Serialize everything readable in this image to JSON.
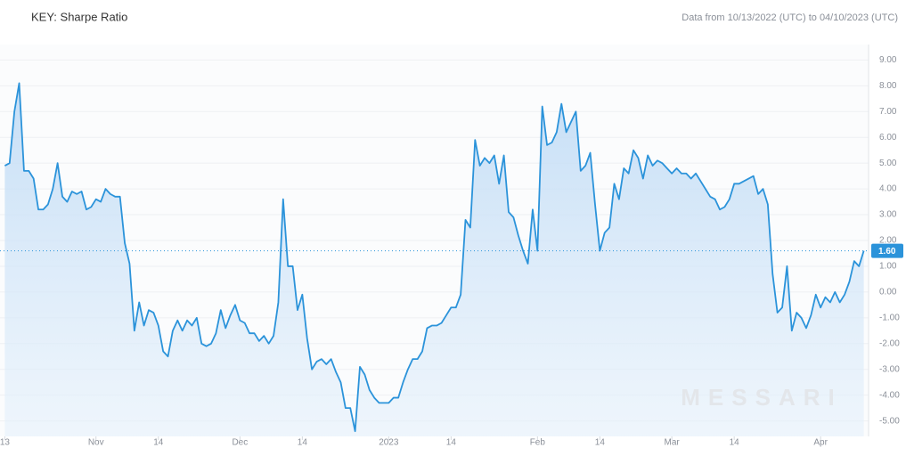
{
  "chart_data": {
    "type": "area",
    "title": "KEY: Sharpe Ratio",
    "subtitle": "Data from 10/13/2022 (UTC) to 04/10/2023 (UTC)",
    "watermark": "MESSARI",
    "color": "#2b93da",
    "fill": "#cfe4f8",
    "grid": true,
    "xlim": [
      "2022-10-12",
      "2023-04-11"
    ],
    "ylim": [
      -5.6,
      9.6
    ],
    "xticks": [
      {
        "value": "2022-10-13",
        "label": "13"
      },
      {
        "value": "2022-11-01",
        "label": "Nov"
      },
      {
        "value": "2022-11-14",
        "label": "14"
      },
      {
        "value": "2022-12-01",
        "label": "Dec"
      },
      {
        "value": "2022-12-14",
        "label": "14"
      },
      {
        "value": "2023-01-01",
        "label": "2023"
      },
      {
        "value": "2023-01-14",
        "label": "14"
      },
      {
        "value": "2023-02-01",
        "label": "Feb"
      },
      {
        "value": "2023-02-14",
        "label": "14"
      },
      {
        "value": "2023-03-01",
        "label": "Mar"
      },
      {
        "value": "2023-03-14",
        "label": "14"
      },
      {
        "value": "2023-04-01",
        "label": "Apr"
      }
    ],
    "yticks": [
      {
        "value": 9,
        "label": "9.00"
      },
      {
        "value": 8,
        "label": "8.00"
      },
      {
        "value": 7,
        "label": "7.00"
      },
      {
        "value": 6,
        "label": "6.00"
      },
      {
        "value": 5,
        "label": "5.00"
      },
      {
        "value": 4,
        "label": "4.00"
      },
      {
        "value": 3,
        "label": "3.00"
      },
      {
        "value": 2,
        "label": "2.00"
      },
      {
        "value": 1,
        "label": "1.00"
      },
      {
        "value": 0,
        "label": "0.00"
      },
      {
        "value": -1,
        "label": "-1.00"
      },
      {
        "value": -2,
        "label": "-2.00"
      },
      {
        "value": -3,
        "label": "-3.00"
      },
      {
        "value": -4,
        "label": "-4.00"
      },
      {
        "value": -5,
        "label": "-5.00"
      }
    ],
    "current": {
      "value": 1.6,
      "label": "1.60"
    },
    "x": [
      "2022-10-13",
      "2022-10-14",
      "2022-10-15",
      "2022-10-16",
      "2022-10-17",
      "2022-10-18",
      "2022-10-19",
      "2022-10-20",
      "2022-10-21",
      "2022-10-22",
      "2022-10-23",
      "2022-10-24",
      "2022-10-25",
      "2022-10-26",
      "2022-10-27",
      "2022-10-28",
      "2022-10-29",
      "2022-10-30",
      "2022-10-31",
      "2022-11-01",
      "2022-11-02",
      "2022-11-03",
      "2022-11-04",
      "2022-11-05",
      "2022-11-06",
      "2022-11-07",
      "2022-11-08",
      "2022-11-09",
      "2022-11-10",
      "2022-11-11",
      "2022-11-12",
      "2022-11-13",
      "2022-11-14",
      "2022-11-15",
      "2022-11-16",
      "2022-11-17",
      "2022-11-18",
      "2022-11-19",
      "2022-11-20",
      "2022-11-21",
      "2022-11-22",
      "2022-11-23",
      "2022-11-24",
      "2022-11-25",
      "2022-11-26",
      "2022-11-27",
      "2022-11-28",
      "2022-11-29",
      "2022-11-30",
      "2022-12-01",
      "2022-12-02",
      "2022-12-03",
      "2022-12-04",
      "2022-12-05",
      "2022-12-06",
      "2022-12-07",
      "2022-12-08",
      "2022-12-09",
      "2022-12-10",
      "2022-12-11",
      "2022-12-12",
      "2022-12-13",
      "2022-12-14",
      "2022-12-15",
      "2022-12-16",
      "2022-12-17",
      "2022-12-18",
      "2022-12-19",
      "2022-12-20",
      "2022-12-21",
      "2022-12-22",
      "2022-12-23",
      "2022-12-24",
      "2022-12-25",
      "2022-12-26",
      "2022-12-27",
      "2022-12-28",
      "2022-12-29",
      "2022-12-30",
      "2022-12-31",
      "2023-01-01",
      "2023-01-02",
      "2023-01-03",
      "2023-01-04",
      "2023-01-05",
      "2023-01-06",
      "2023-01-07",
      "2023-01-08",
      "2023-01-09",
      "2023-01-10",
      "2023-01-11",
      "2023-01-12",
      "2023-01-13",
      "2023-01-14",
      "2023-01-15",
      "2023-01-16",
      "2023-01-17",
      "2023-01-18",
      "2023-01-19",
      "2023-01-20",
      "2023-01-21",
      "2023-01-22",
      "2023-01-23",
      "2023-01-24",
      "2023-01-25",
      "2023-01-26",
      "2023-01-27",
      "2023-01-28",
      "2023-01-29",
      "2023-01-30",
      "2023-01-31",
      "2023-02-01",
      "2023-02-02",
      "2023-02-03",
      "2023-02-04",
      "2023-02-05",
      "2023-02-06",
      "2023-02-07",
      "2023-02-08",
      "2023-02-09",
      "2023-02-10",
      "2023-02-11",
      "2023-02-12",
      "2023-02-13",
      "2023-02-14",
      "2023-02-15",
      "2023-02-16",
      "2023-02-17",
      "2023-02-18",
      "2023-02-19",
      "2023-02-20",
      "2023-02-21",
      "2023-02-22",
      "2023-02-23",
      "2023-02-24",
      "2023-02-25",
      "2023-02-26",
      "2023-02-27",
      "2023-02-28",
      "2023-03-01",
      "2023-03-02",
      "2023-03-03",
      "2023-03-04",
      "2023-03-05",
      "2023-03-06",
      "2023-03-07",
      "2023-03-08",
      "2023-03-09",
      "2023-03-10",
      "2023-03-11",
      "2023-03-12",
      "2023-03-13",
      "2023-03-14",
      "2023-03-15",
      "2023-03-16",
      "2023-03-17",
      "2023-03-18",
      "2023-03-19",
      "2023-03-20",
      "2023-03-21",
      "2023-03-22",
      "2023-03-23",
      "2023-03-24",
      "2023-03-25",
      "2023-03-26",
      "2023-03-27",
      "2023-03-28",
      "2023-03-29",
      "2023-03-30",
      "2023-03-31",
      "2023-04-01",
      "2023-04-02",
      "2023-04-03",
      "2023-04-04",
      "2023-04-05",
      "2023-04-06",
      "2023-04-07",
      "2023-04-08",
      "2023-04-09",
      "2023-04-10"
    ],
    "values": [
      4.9,
      5.0,
      7.0,
      8.1,
      4.7,
      4.7,
      4.4,
      3.2,
      3.2,
      3.4,
      4.0,
      5.0,
      3.7,
      3.5,
      3.9,
      3.8,
      3.9,
      3.2,
      3.3,
      3.6,
      3.5,
      4.0,
      3.8,
      3.7,
      3.7,
      1.9,
      1.1,
      -1.5,
      -0.4,
      -1.3,
      -0.7,
      -0.8,
      -1.3,
      -2.3,
      -2.5,
      -1.5,
      -1.1,
      -1.5,
      -1.1,
      -1.3,
      -1.0,
      -2.0,
      -2.1,
      -2.0,
      -1.6,
      -0.7,
      -1.4,
      -0.9,
      -0.5,
      -1.1,
      -1.2,
      -1.6,
      -1.6,
      -1.9,
      -1.7,
      -2.0,
      -1.7,
      -0.4,
      3.6,
      1.0,
      1.0,
      -0.7,
      -0.1,
      -1.8,
      -3.0,
      -2.7,
      -2.6,
      -2.8,
      -2.6,
      -3.1,
      -3.5,
      -4.5,
      -4.5,
      -5.4,
      -2.9,
      -3.2,
      -3.8,
      -4.1,
      -4.3,
      -4.3,
      -4.3,
      -4.1,
      -4.1,
      -3.5,
      -3.0,
      -2.6,
      -2.6,
      -2.3,
      -1.4,
      -1.3,
      -1.3,
      -1.2,
      -0.9,
      -0.6,
      -0.6,
      -0.1,
      2.8,
      2.5,
      5.9,
      4.9,
      5.2,
      5.0,
      5.3,
      4.2,
      5.3,
      3.1,
      2.9,
      2.2,
      1.6,
      1.1,
      3.2,
      1.6,
      7.2,
      5.7,
      5.8,
      6.2,
      7.3,
      6.2,
      6.6,
      7.0,
      4.7,
      4.9,
      5.4,
      3.4,
      1.6,
      2.3,
      2.5,
      4.2,
      3.6,
      4.8,
      4.6,
      5.5,
      5.2,
      4.4,
      5.3,
      4.9,
      5.1,
      5.0,
      4.8,
      4.6,
      4.8,
      4.6,
      4.6,
      4.4,
      4.6,
      4.3,
      4.0,
      3.7,
      3.6,
      3.2,
      3.3,
      3.6,
      4.2,
      4.2,
      4.3,
      4.4,
      4.5,
      3.8,
      4.0,
      3.4,
      0.7,
      -0.8,
      -0.6,
      1.0,
      -1.5,
      -0.8,
      -1.0,
      -1.4,
      -0.9,
      -0.1,
      -0.6,
      -0.2,
      -0.4,
      0.0,
      -0.4,
      -0.1,
      0.4,
      1.2,
      1.0,
      1.6
    ]
  }
}
